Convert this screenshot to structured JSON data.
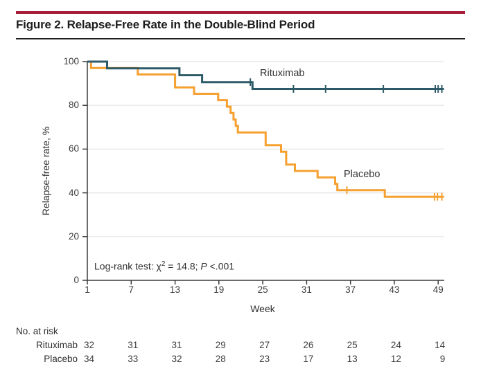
{
  "header": {
    "title": "Figure 2. Relapse-Free Rate in the Double-Blind Period",
    "accent_color": "#A71E38"
  },
  "chart_data": {
    "type": "line",
    "subtype": "kaplan-meier-step",
    "xlabel": "Week",
    "ylabel": "Relapse-free rate, %",
    "xlim": [
      1,
      49
    ],
    "ylim": [
      0,
      100
    ],
    "x_ticks": [
      1,
      7,
      13,
      19,
      25,
      31,
      37,
      43,
      49
    ],
    "y_ticks": [
      0,
      20,
      40,
      60,
      80,
      100
    ],
    "grid": "horizontal",
    "grid_color": "#E4E4E3",
    "axis_color": "#3a3a3a",
    "annotation": {
      "text": "Log-rank test: χ2 = 14.8; P <.001",
      "parts": {
        "prefix": "Log-rank test: χ",
        "sup": "2",
        "mid": " = 14.8; ",
        "p": "P",
        "tail": " <.001"
      }
    },
    "series": [
      {
        "name": "Rituximab",
        "color": "#2D5A68",
        "points": [
          [
            1,
            100
          ],
          [
            3.7,
            100
          ],
          [
            3.7,
            96.9
          ],
          [
            13.6,
            96.9
          ],
          [
            13.6,
            93.8
          ],
          [
            16.7,
            93.8
          ],
          [
            16.7,
            90.6
          ],
          [
            23.6,
            90.6
          ],
          [
            23.6,
            87.5
          ],
          [
            49.8,
            87.5
          ]
        ],
        "censor_marks": [
          [
            23.3,
            90.6
          ],
          [
            29.2,
            87.5
          ],
          [
            33.6,
            87.5
          ],
          [
            41.5,
            87.5
          ],
          [
            48.6,
            87.5
          ],
          [
            49.0,
            87.5
          ],
          [
            49.5,
            87.5
          ]
        ]
      },
      {
        "name": "Placebo",
        "color": "#F5A02F",
        "points": [
          [
            1,
            100
          ],
          [
            1.5,
            100
          ],
          [
            1.5,
            97.1
          ],
          [
            7.9,
            97.1
          ],
          [
            7.9,
            94.1
          ],
          [
            13.0,
            94.1
          ],
          [
            13.0,
            88.2
          ],
          [
            15.6,
            88.2
          ],
          [
            15.6,
            85.3
          ],
          [
            18.9,
            85.3
          ],
          [
            18.9,
            82.4
          ],
          [
            20.1,
            82.4
          ],
          [
            20.1,
            79.4
          ],
          [
            20.6,
            79.4
          ],
          [
            20.6,
            76.5
          ],
          [
            21.0,
            76.5
          ],
          [
            21.0,
            73.5
          ],
          [
            21.3,
            73.5
          ],
          [
            21.3,
            70.6
          ],
          [
            21.6,
            70.6
          ],
          [
            21.6,
            67.6
          ],
          [
            25.4,
            67.6
          ],
          [
            25.4,
            61.8
          ],
          [
            27.5,
            61.8
          ],
          [
            27.5,
            58.8
          ],
          [
            28.2,
            58.8
          ],
          [
            28.2,
            52.9
          ],
          [
            29.4,
            52.9
          ],
          [
            29.4,
            50.0
          ],
          [
            32.5,
            50.0
          ],
          [
            32.5,
            47.1
          ],
          [
            34.9,
            47.1
          ],
          [
            34.9,
            44.1
          ],
          [
            35.2,
            44.1
          ],
          [
            35.2,
            41.2
          ],
          [
            41.7,
            41.2
          ],
          [
            41.7,
            38.2
          ],
          [
            49.8,
            38.2
          ]
        ],
        "censor_marks": [
          [
            36.5,
            41.2
          ],
          [
            48.5,
            38.2
          ],
          [
            48.9,
            38.2
          ],
          [
            49.5,
            38.2
          ]
        ]
      }
    ],
    "at_risk": {
      "title": "No. at risk",
      "weeks": [
        1,
        7,
        13,
        19,
        25,
        31,
        37,
        43,
        49
      ],
      "rows": [
        {
          "label": "Rituximab",
          "counts": [
            32,
            31,
            31,
            29,
            27,
            26,
            25,
            24,
            14
          ]
        },
        {
          "label": "Placebo",
          "counts": [
            34,
            33,
            32,
            28,
            23,
            17,
            13,
            12,
            9
          ]
        }
      ]
    }
  }
}
